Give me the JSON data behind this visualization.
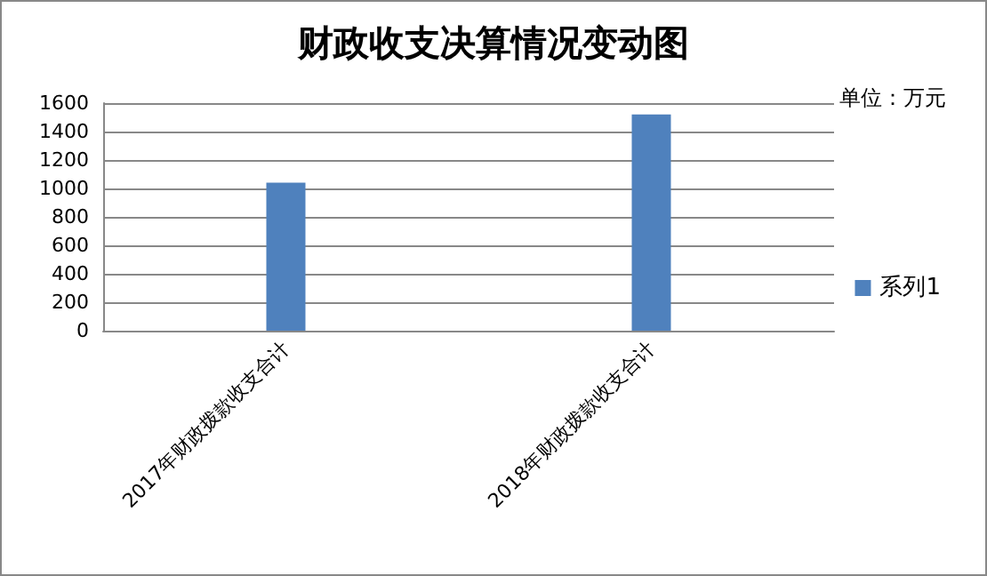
{
  "chart_data": {
    "type": "bar",
    "title": "财政收支决算情况变动图",
    "categories": [
      "2017年财政拨款收支合计",
      "2018年财政拨款收支合计"
    ],
    "series": [
      {
        "name": "系列1",
        "color": "#4f81bd",
        "values": [
          1040,
          1520
        ]
      }
    ],
    "ylim": [
      0,
      1600
    ],
    "yticks": [
      0,
      200,
      400,
      600,
      800,
      1000,
      1200,
      1400,
      1600
    ],
    "grid": "y",
    "legend": "right",
    "annotations": [
      "单位：万元"
    ]
  }
}
